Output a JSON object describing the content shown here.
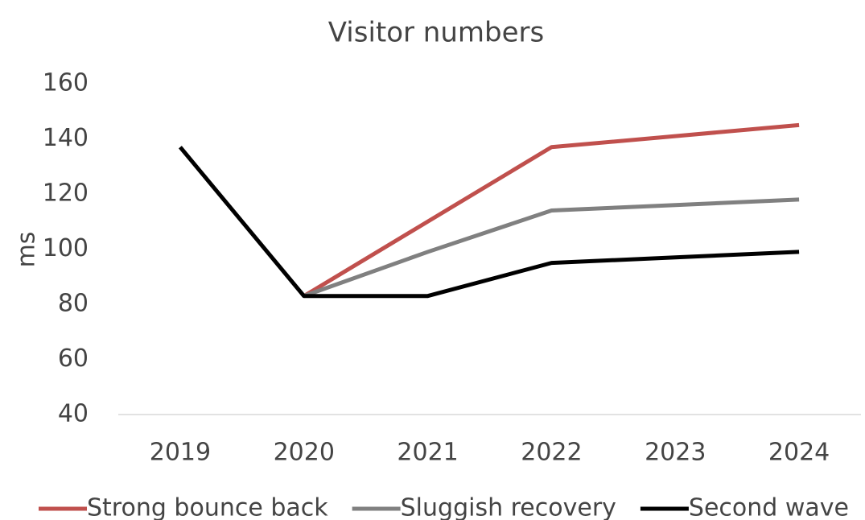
{
  "chart_data": {
    "type": "line",
    "title": "Visitor numbers",
    "y_label": "ms",
    "categories": [
      "2019",
      "2020",
      "2021",
      "2022",
      "2023",
      "2024"
    ],
    "series": [
      {
        "name": "Strong bounce back",
        "color": "#c0504d",
        "values": [
          null,
          83,
          110,
          137,
          141,
          145
        ]
      },
      {
        "name": "Sluggish recovery",
        "color": "#808080",
        "values": [
          null,
          83,
          99,
          114,
          116,
          118
        ]
      },
      {
        "name": "Second wave",
        "color": "#000000",
        "values": [
          137,
          83,
          83,
          95,
          97,
          99
        ]
      }
    ],
    "ylim": [
      40,
      160
    ],
    "yticks": [
      40,
      60,
      80,
      100,
      120,
      140,
      160
    ],
    "grid": false,
    "legend": "bottom"
  }
}
